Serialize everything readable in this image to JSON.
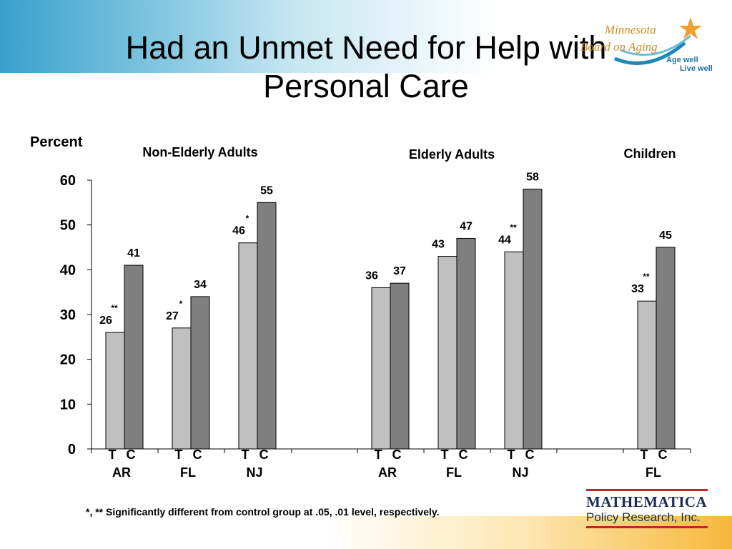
{
  "title": "Had an Unmet Need for Help with\nPersonal Care",
  "footnote": "*, ** Significantly different from control group at  .05, .01 level, respectively.",
  "logos": {
    "minnesota_board": {
      "line1": "Minnesota",
      "line2": "Board on Aging",
      "tagline1": "Age well",
      "tagline2": "Live well"
    },
    "mathematica": {
      "name": "MATHEMATICA",
      "sub": "Policy Research, Inc."
    }
  },
  "colors": {
    "treatment": "#c0c0c0",
    "control": "#7f7f7f",
    "text": "#000000"
  },
  "chart_data": {
    "type": "bar",
    "ylabel": "Percent",
    "ylim": [
      0,
      60
    ],
    "yticks": [
      0,
      10,
      20,
      30,
      40,
      50,
      60
    ],
    "group_labels": [
      "Non-Elderly Adults",
      "Elderly Adults",
      "Children"
    ],
    "series": [
      {
        "name": "T"
      },
      {
        "name": "C"
      }
    ],
    "categories": [
      {
        "state": "AR",
        "group": "Non-Elderly Adults",
        "T": 26,
        "C": 41,
        "sig": "**"
      },
      {
        "state": "FL",
        "group": "Non-Elderly Adults",
        "T": 27,
        "C": 34,
        "sig": "*"
      },
      {
        "state": "NJ",
        "group": "Non-Elderly Adults",
        "T": 46,
        "C": 55,
        "sig": "*"
      },
      {
        "state": "AR",
        "group": "Elderly Adults",
        "T": 36,
        "C": 37,
        "sig": ""
      },
      {
        "state": "FL",
        "group": "Elderly Adults",
        "T": 43,
        "C": 47,
        "sig": ""
      },
      {
        "state": "NJ",
        "group": "Elderly Adults",
        "T": 44,
        "C": 58,
        "sig": "**"
      },
      {
        "state": "FL",
        "group": "Children",
        "T": 33,
        "C": 45,
        "sig": "**"
      }
    ]
  }
}
